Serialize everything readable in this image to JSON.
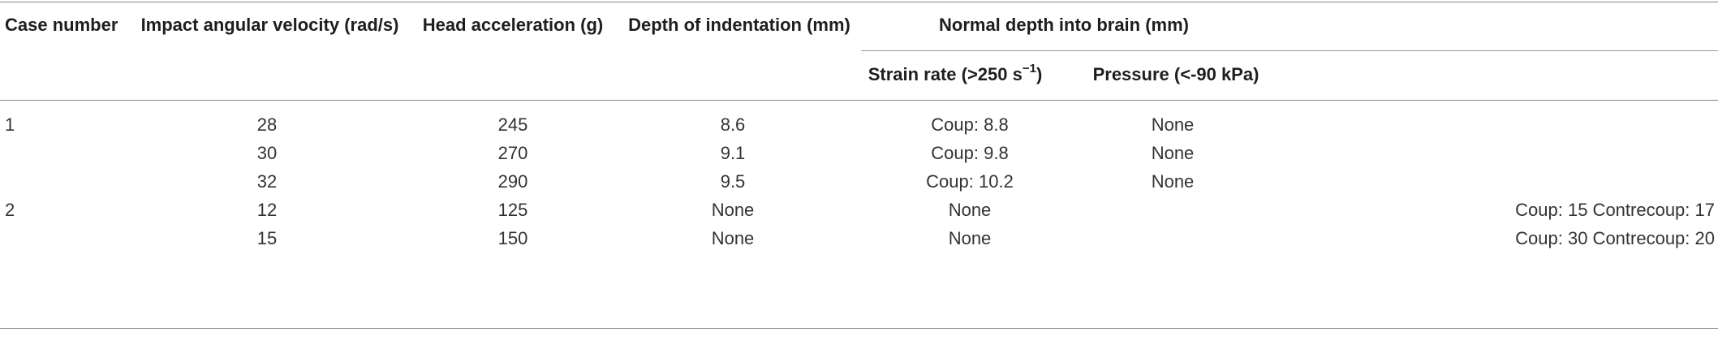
{
  "table": {
    "headers": {
      "case_number": "Case number",
      "impact_angular_velocity": "Impact angular velocity (rad/s)",
      "head_acceleration": "Head acceleration (g)",
      "depth_of_indentation": "Depth of indentation (mm)",
      "normal_depth_group": "Normal depth into brain (mm)",
      "strain_rate_prefix": "Strain rate (>250 s",
      "strain_rate_sup": "−1",
      "strain_rate_suffix": ")",
      "pressure": "Pressure (<-90 kPa)"
    },
    "rows": [
      {
        "case": "1",
        "velocity": "28",
        "acceleration": "245",
        "indentation": "8.6",
        "strain": "Coup: 8.8",
        "pressure": "None"
      },
      {
        "case": "",
        "velocity": "30",
        "acceleration": "270",
        "indentation": "9.1",
        "strain": "Coup: 9.8",
        "pressure": "None"
      },
      {
        "case": "",
        "velocity": "32",
        "acceleration": "290",
        "indentation": "9.5",
        "strain": "Coup: 10.2",
        "pressure": "None"
      },
      {
        "case": "2",
        "velocity": "12",
        "acceleration": "125",
        "indentation": "None",
        "strain": "None",
        "pressure": "Coup: 15 Contrecoup: 17"
      },
      {
        "case": "",
        "velocity": "15",
        "acceleration": "150",
        "indentation": "None",
        "strain": "None",
        "pressure": "Coup: 30 Contrecoup: 20"
      }
    ]
  }
}
